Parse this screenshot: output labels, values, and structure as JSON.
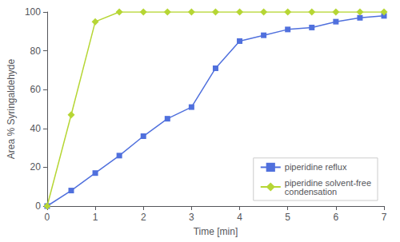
{
  "chart_data": {
    "type": "line",
    "xlabel": "Time [min]",
    "ylabel": "Area % Syringaldehyde",
    "x": [
      0,
      0.5,
      1.0,
      1.5,
      2.0,
      2.5,
      3.0,
      3.5,
      4.0,
      4.5,
      5.0,
      5.5,
      6.0,
      6.5,
      7.0
    ],
    "series": [
      {
        "name": "piperidine reflux",
        "marker": "square",
        "values": [
          0,
          8,
          17,
          26,
          36,
          45,
          51,
          71,
          85,
          88,
          91,
          92,
          95,
          97,
          98
        ]
      },
      {
        "name": "piperidine solvent-free\ncondensation",
        "marker": "diamond",
        "values": [
          0,
          47,
          95,
          100,
          100,
          100,
          100,
          100,
          100,
          100,
          100,
          100,
          100,
          100,
          100
        ]
      }
    ],
    "xlim": [
      0,
      7
    ],
    "xticks": [
      0,
      1,
      2,
      3,
      4,
      5,
      6,
      7
    ],
    "ylim": [
      0,
      100
    ],
    "yticks": [
      0,
      20,
      40,
      60,
      80,
      100
    ],
    "grid": false,
    "legend": "lower right"
  }
}
